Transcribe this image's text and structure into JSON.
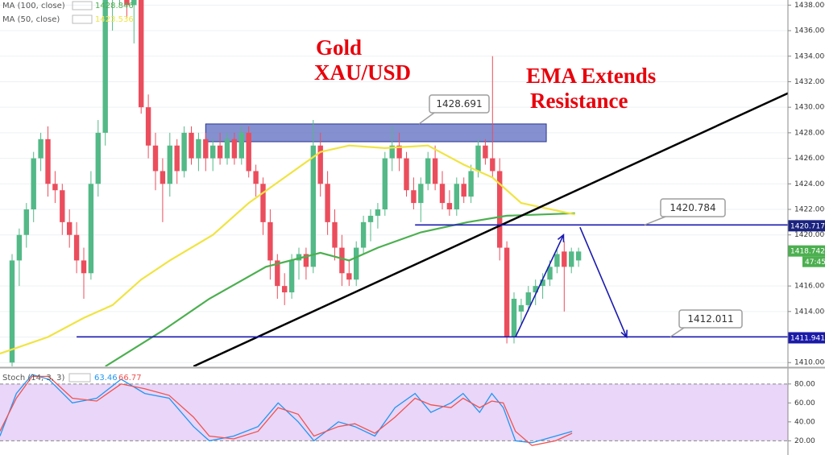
{
  "chart_data": [
    {
      "type": "candlestick",
      "up_color": "#53b987",
      "down_color": "#eb4d5c",
      "xlim": [
        -1.685,
        108.2
      ],
      "ylim": [
        1409.7,
        1438.4
      ],
      "yticks": [
        {
          "value": 1410,
          "label": "1410.000"
        },
        {
          "value": 1412,
          "label": "1412.000"
        },
        {
          "value": 1414,
          "label": "1414.000"
        },
        {
          "value": 1416,
          "label": "1416.000"
        },
        {
          "value": 1420,
          "label": "1420.000"
        },
        {
          "value": 1422,
          "label": "1422.000"
        },
        {
          "value": 1424,
          "label": "1424.000"
        },
        {
          "value": 1426,
          "label": "1426.000"
        },
        {
          "value": 1428,
          "label": "1428.000"
        },
        {
          "value": 1430,
          "label": "1430.000"
        },
        {
          "value": 1432,
          "label": "1432.000"
        },
        {
          "value": 1434,
          "label": "1434.000"
        },
        {
          "value": 1436,
          "label": "1436.000"
        },
        {
          "value": 1438,
          "label": "1438.000"
        }
      ],
      "grid": true,
      "ohlc": [
        [
          1410,
          1418.5,
          1409.5,
          1418
        ],
        [
          1418,
          1420.5,
          1416,
          1420
        ],
        [
          1420,
          1422.5,
          1419,
          1422
        ],
        [
          1422,
          1426.5,
          1421,
          1426
        ],
        [
          1426,
          1428,
          1425,
          1427.5
        ],
        [
          1427.5,
          1428.5,
          1423,
          1424
        ],
        [
          1424,
          1425,
          1422.5,
          1423.5
        ],
        [
          1423.5,
          1424,
          1420,
          1421
        ],
        [
          1421,
          1422,
          1419,
          1420
        ],
        [
          1420,
          1421,
          1417,
          1418
        ],
        [
          1418,
          1419,
          1415,
          1417
        ],
        [
          1417,
          1425,
          1416.5,
          1424
        ],
        [
          1424,
          1429,
          1423,
          1428
        ],
        [
          1428,
          1439,
          1427,
          1438.5
        ],
        [
          1438.5,
          1441,
          1436,
          1440
        ],
        [
          1440,
          1442,
          1438,
          1441
        ],
        [
          1441,
          1442,
          1437,
          1438
        ],
        [
          1438,
          1439.5,
          1435,
          1439
        ],
        [
          1439,
          1439.5,
          1429.5,
          1430
        ],
        [
          1430,
          1431,
          1426,
          1427
        ],
        [
          1427,
          1428,
          1423.5,
          1425
        ],
        [
          1425,
          1426,
          1421,
          1424
        ],
        [
          1424,
          1428,
          1423,
          1427
        ],
        [
          1427,
          1427.5,
          1424,
          1425
        ],
        [
          1425,
          1428.5,
          1424.5,
          1428
        ],
        [
          1428,
          1428.5,
          1425.5,
          1426
        ],
        [
          1426,
          1428,
          1425,
          1427.5
        ],
        [
          1427.5,
          1428,
          1425,
          1426
        ],
        [
          1426,
          1427.5,
          1425,
          1427
        ],
        [
          1427,
          1428,
          1425.5,
          1426
        ],
        [
          1426,
          1428,
          1425.5,
          1427.5
        ],
        [
          1427.5,
          1428,
          1425.5,
          1426
        ],
        [
          1426,
          1428.5,
          1425.5,
          1428
        ],
        [
          1428,
          1428.5,
          1424.5,
          1425
        ],
        [
          1425,
          1425.5,
          1423,
          1424
        ],
        [
          1424,
          1424.5,
          1420,
          1421
        ],
        [
          1421,
          1422,
          1416.5,
          1418
        ],
        [
          1418,
          1418.5,
          1415,
          1416
        ],
        [
          1416,
          1417,
          1414.5,
          1415.5
        ],
        [
          1415.5,
          1418.5,
          1415,
          1418
        ],
        [
          1418,
          1419,
          1416.5,
          1418.5
        ],
        [
          1418.5,
          1419,
          1416.5,
          1417.5
        ],
        [
          1417.5,
          1429,
          1417,
          1427
        ],
        [
          1427,
          1428,
          1423,
          1424
        ],
        [
          1424,
          1425,
          1420,
          1421
        ],
        [
          1421,
          1422,
          1418,
          1419
        ],
        [
          1419,
          1420,
          1416,
          1417
        ],
        [
          1417,
          1418,
          1416,
          1416.5
        ],
        [
          1416.5,
          1419.5,
          1416,
          1419
        ],
        [
          1419,
          1421.5,
          1418.5,
          1421
        ],
        [
          1421,
          1422,
          1419.5,
          1421.5
        ],
        [
          1421.5,
          1422.5,
          1420.5,
          1422
        ],
        [
          1422,
          1426.5,
          1421.5,
          1426
        ],
        [
          1426,
          1428.5,
          1425,
          1427
        ],
        [
          1427,
          1428,
          1425,
          1426
        ],
        [
          1426,
          1426.5,
          1423,
          1423.5
        ],
        [
          1423.5,
          1424.5,
          1422,
          1422.5
        ],
        [
          1422.5,
          1424.5,
          1421,
          1424
        ],
        [
          1424,
          1426.5,
          1423.5,
          1426
        ],
        [
          1426,
          1427,
          1423.5,
          1424
        ],
        [
          1424,
          1425,
          1422,
          1422.5
        ],
        [
          1422.5,
          1423.5,
          1421.5,
          1422
        ],
        [
          1422,
          1424.5,
          1421.5,
          1424
        ],
        [
          1424,
          1424.5,
          1422.5,
          1423
        ],
        [
          1423,
          1425.5,
          1422.5,
          1425
        ],
        [
          1425,
          1427.5,
          1424.5,
          1427
        ],
        [
          1427,
          1427.5,
          1425.5,
          1426
        ],
        [
          1426,
          1434,
          1424.5,
          1425
        ],
        [
          1425,
          1426,
          1418,
          1419
        ],
        [
          1419,
          1419.5,
          1411.5,
          1412
        ],
        [
          1412,
          1415.5,
          1411.5,
          1415
        ],
        [
          1414,
          1415,
          1413,
          1414.5
        ],
        [
          1414.5,
          1416,
          1414,
          1415.5
        ],
        [
          1415.5,
          1416.5,
          1414.5,
          1416
        ],
        [
          1416,
          1417,
          1415,
          1416.5
        ],
        [
          1416.5,
          1418,
          1416,
          1417.5
        ],
        [
          1417.5,
          1419,
          1417,
          1418.5
        ],
        [
          1418.7,
          1419.5,
          1414,
          1417.5
        ],
        [
          1417.5,
          1419,
          1417,
          1418.7
        ],
        [
          1418,
          1419,
          1417.5,
          1418.7
        ]
      ],
      "series": [
        {
          "name": "MA (100, close)",
          "legend_value": 1428.846,
          "color": "#4caf50",
          "x": [
            13,
            21,
            27.5,
            35.4,
            43,
            47,
            51,
            57,
            63.5,
            69,
            78.5
          ],
          "values": [
            1409.7,
            1412.5,
            1415,
            1417.5,
            1418.6,
            1418,
            1419,
            1420.2,
            1421,
            1421.5,
            1421.7
          ]
        },
        {
          "name": "MA (50, close)",
          "legend_value": 1423.536,
          "color": "#f0e442",
          "x": [
            -1.685,
            5,
            10,
            14,
            18,
            22,
            28,
            33,
            38,
            43,
            47,
            52,
            58,
            63,
            67,
            71,
            78.5
          ],
          "values": [
            1410.7,
            1412,
            1413.5,
            1414.5,
            1416.5,
            1418,
            1420,
            1422.5,
            1424.5,
            1426.5,
            1427,
            1426.8,
            1427,
            1425.5,
            1424.5,
            1422.5,
            1421.6
          ]
        }
      ],
      "zone": {
        "x": [
          27,
          74.5
        ],
        "low": 1427.3,
        "high": 1428.691,
        "color": "#5c6bc0"
      },
      "levels": [
        {
          "value": 1420.784,
          "x": 56.2
        },
        {
          "value": 1412.011,
          "x": 9
        }
      ],
      "trendline": {
        "x": [
          25.3,
          108.2
        ],
        "values": [
          1409.7,
          1431.1
        ]
      },
      "arrows": [
        {
          "x": [
            70.2,
            76.9
          ],
          "values": [
            1412,
            1420
          ]
        },
        {
          "x": [
            79.2,
            85.7
          ],
          "values": [
            1420.6,
            1412
          ]
        }
      ],
      "price_tags": [
        {
          "value": 1420.717,
          "color": "#1a237e"
        },
        {
          "value": 1418.742,
          "color": "#4caf50"
        },
        {
          "value": 1411.941,
          "color": "#1a1aa8"
        }
      ],
      "countdown": "47:45",
      "annotations": [
        "Gold",
        "XAU/USD",
        "EMA Extends",
        "Resistance"
      ]
    },
    {
      "type": "stoch",
      "title": "Stoch (14, 3, 3)",
      "xlim": [
        -1.685,
        108.2
      ],
      "ylim": [
        5,
        96
      ],
      "yticks": [
        {
          "value": 20,
          "label": "20.00"
        },
        {
          "value": 40,
          "label": "40.00"
        },
        {
          "value": 60,
          "label": "60.00"
        },
        {
          "value": 80,
          "label": "80.00"
        }
      ],
      "band": [
        20,
        80
      ],
      "series": [
        {
          "name": "%K",
          "legend_value": 63.46,
          "color": "#2196f3",
          "x": [
            -1.7,
            0.6,
            2.8,
            5.1,
            8.4,
            11.8,
            15.2,
            18.5,
            21.9,
            25.3,
            27.5,
            30.9,
            34.3,
            37.1,
            39.9,
            42.1,
            45.5,
            47.8,
            50.6,
            53.4,
            56.2,
            58.4,
            61.2,
            62.9,
            65.2,
            66.9,
            68.5,
            70.2,
            72.5,
            75.8,
            78.1
          ],
          "values": [
            25,
            70,
            90,
            85,
            60,
            65,
            85,
            70,
            65,
            35,
            20,
            25,
            35,
            60,
            40,
            20,
            40,
            35,
            25,
            55,
            70,
            50,
            60,
            70,
            50,
            70,
            55,
            20,
            18,
            25,
            30
          ]
        },
        {
          "name": "%D",
          "legend_value": 66.77,
          "color": "#ef5350",
          "x": [
            -1.7,
            0.6,
            2.8,
            5.1,
            8.4,
            11.8,
            15.2,
            18.5,
            21.9,
            25.3,
            27.5,
            30.9,
            34.3,
            37.1,
            39.9,
            42.1,
            45.5,
            47.8,
            50.6,
            53.4,
            56.2,
            58.4,
            61.2,
            62.9,
            65.2,
            66.9,
            68.5,
            70.2,
            72.5,
            75.8,
            78.1
          ],
          "values": [
            30,
            65,
            88,
            88,
            65,
            62,
            80,
            75,
            68,
            45,
            25,
            22,
            30,
            55,
            48,
            25,
            35,
            38,
            28,
            45,
            65,
            58,
            55,
            65,
            55,
            62,
            60,
            30,
            15,
            20,
            28
          ]
        }
      ]
    }
  ]
}
